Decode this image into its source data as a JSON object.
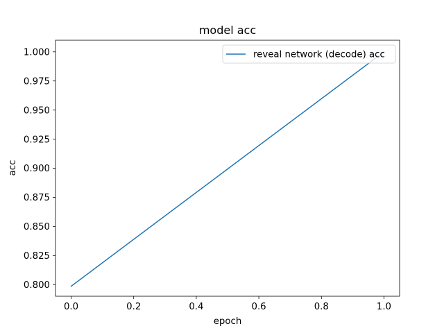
{
  "chart_data": {
    "type": "line",
    "title": "model acc",
    "xlabel": "epoch",
    "ylabel": "acc",
    "xlim": [
      -0.05,
      1.05
    ],
    "ylim": [
      0.79,
      1.01
    ],
    "xticks": [
      0.0,
      0.2,
      0.4,
      0.6,
      0.8,
      1.0
    ],
    "xtick_labels": [
      "0.0",
      "0.2",
      "0.4",
      "0.6",
      "0.8",
      "1.0"
    ],
    "yticks": [
      0.8,
      0.825,
      0.85,
      0.875,
      0.9,
      0.925,
      0.95,
      0.975,
      1.0
    ],
    "ytick_labels": [
      "0.800",
      "0.825",
      "0.850",
      "0.875",
      "0.900",
      "0.925",
      "0.950",
      "0.975",
      "1.000"
    ],
    "grid": false,
    "legend_position": "top-right",
    "series": [
      {
        "name": "reveal network (decode) acc",
        "color": "#1f77b4",
        "x": [
          0,
          1
        ],
        "y": [
          0.7986,
          1.0
        ]
      }
    ]
  }
}
